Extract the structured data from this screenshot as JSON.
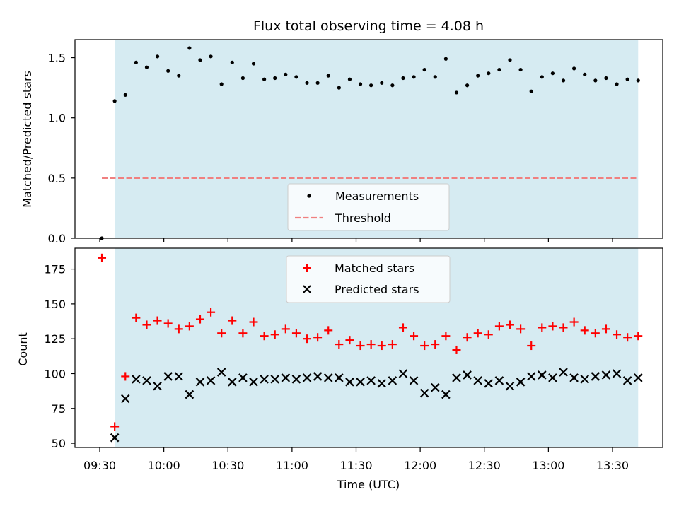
{
  "chart_data": [
    {
      "type": "scatter",
      "title": "Flux total observing time = 4.08 h",
      "xlabel": "",
      "ylabel": "Matched/Predicted stars",
      "ylim": [
        0,
        1.65
      ],
      "yticks": [
        "0.0",
        "0.5",
        "1.0",
        "1.5"
      ],
      "ytick_values": [
        0,
        0.5,
        1.0,
        1.5
      ],
      "observing_span": [
        "09:37",
        "13:42"
      ],
      "legend_position": "lower-center",
      "series": [
        {
          "name": "Measurements",
          "marker": "dot",
          "color": "#000000",
          "x": [
            "09:31",
            "09:37",
            "09:42",
            "09:47",
            "09:52",
            "09:57",
            "10:02",
            "10:07",
            "10:12",
            "10:17",
            "10:22",
            "10:27",
            "10:32",
            "10:37",
            "10:42",
            "10:47",
            "10:52",
            "10:57",
            "11:02",
            "11:07",
            "11:12",
            "11:17",
            "11:22",
            "11:27",
            "11:32",
            "11:37",
            "11:42",
            "11:47",
            "11:52",
            "11:57",
            "12:02",
            "12:07",
            "12:12",
            "12:17",
            "12:22",
            "12:27",
            "12:32",
            "12:37",
            "12:42",
            "12:47",
            "12:52",
            "12:57",
            "13:02",
            "13:07",
            "13:12",
            "13:17",
            "13:22",
            "13:27",
            "13:32",
            "13:37",
            "13:42"
          ],
          "y": [
            0.0,
            1.14,
            1.19,
            1.46,
            1.42,
            1.51,
            1.39,
            1.35,
            1.58,
            1.48,
            1.51,
            1.28,
            1.46,
            1.33,
            1.45,
            1.32,
            1.33,
            1.36,
            1.34,
            1.29,
            1.29,
            1.35,
            1.25,
            1.32,
            1.28,
            1.27,
            1.29,
            1.27,
            1.33,
            1.34,
            1.4,
            1.34,
            1.49,
            1.21,
            1.27,
            1.35,
            1.37,
            1.4,
            1.48,
            1.4,
            1.22,
            1.34,
            1.37,
            1.31,
            1.41,
            1.36,
            1.31,
            1.33,
            1.28,
            1.32,
            1.31
          ]
        },
        {
          "name": "Threshold",
          "style": "dashed",
          "color": "#f08080",
          "x": [
            "09:31",
            "13:42"
          ],
          "y": [
            0.5,
            0.5
          ]
        }
      ]
    },
    {
      "type": "scatter",
      "title": "",
      "xlabel": "Time (UTC)",
      "ylabel": "Count",
      "ylim": [
        47,
        190
      ],
      "yticks": [
        "50",
        "75",
        "100",
        "125",
        "150",
        "175"
      ],
      "ytick_values": [
        50,
        75,
        100,
        125,
        150,
        175
      ],
      "xticks": [
        "09:30",
        "10:00",
        "10:30",
        "11:00",
        "11:30",
        "12:00",
        "12:30",
        "13:00",
        "13:30"
      ],
      "observing_span": [
        "09:37",
        "13:42"
      ],
      "legend_position": "upper-center",
      "series": [
        {
          "name": "Matched stars",
          "marker": "plus",
          "color": "#ff0000",
          "x": [
            "09:31",
            "09:37",
            "09:42",
            "09:47",
            "09:52",
            "09:57",
            "10:02",
            "10:07",
            "10:12",
            "10:17",
            "10:22",
            "10:27",
            "10:32",
            "10:37",
            "10:42",
            "10:47",
            "10:52",
            "10:57",
            "11:02",
            "11:07",
            "11:12",
            "11:17",
            "11:22",
            "11:27",
            "11:32",
            "11:37",
            "11:42",
            "11:47",
            "11:52",
            "11:57",
            "12:02",
            "12:07",
            "12:12",
            "12:17",
            "12:22",
            "12:27",
            "12:32",
            "12:37",
            "12:42",
            "12:47",
            "12:52",
            "12:57",
            "13:02",
            "13:07",
            "13:12",
            "13:17",
            "13:22",
            "13:27",
            "13:32",
            "13:37",
            "13:42"
          ],
          "y": [
            183,
            62,
            98,
            140,
            135,
            138,
            136,
            132,
            134,
            139,
            144,
            129,
            138,
            129,
            137,
            127,
            128,
            132,
            129,
            125,
            126,
            131,
            121,
            124,
            120,
            121,
            120,
            121,
            133,
            127,
            120,
            121,
            127,
            117,
            126,
            129,
            128,
            134,
            135,
            132,
            120,
            133,
            134,
            133,
            137,
            131,
            129,
            132,
            128,
            126,
            127
          ]
        },
        {
          "name": "Predicted stars",
          "marker": "x",
          "color": "#000000",
          "x": [
            "09:37",
            "09:42",
            "09:47",
            "09:52",
            "09:57",
            "10:02",
            "10:07",
            "10:12",
            "10:17",
            "10:22",
            "10:27",
            "10:32",
            "10:37",
            "10:42",
            "10:47",
            "10:52",
            "10:57",
            "11:02",
            "11:07",
            "11:12",
            "11:17",
            "11:22",
            "11:27",
            "11:32",
            "11:37",
            "11:42",
            "11:47",
            "11:52",
            "11:57",
            "12:02",
            "12:07",
            "12:12",
            "12:17",
            "12:22",
            "12:27",
            "12:32",
            "12:37",
            "12:42",
            "12:47",
            "12:52",
            "12:57",
            "13:02",
            "13:07",
            "13:12",
            "13:17",
            "13:22",
            "13:27",
            "13:32",
            "13:37",
            "13:42"
          ],
          "y": [
            54,
            82,
            96,
            95,
            91,
            98,
            98,
            85,
            94,
            95,
            101,
            94,
            97,
            94,
            96,
            96,
            97,
            96,
            97,
            98,
            97,
            97,
            94,
            94,
            95,
            93,
            95,
            100,
            95,
            86,
            90,
            85,
            97,
            99,
            95,
            93,
            95,
            91,
            94,
            98,
            99,
            97,
            101,
            97,
            96,
            98,
            99,
            100,
            95,
            97
          ]
        }
      ]
    }
  ]
}
